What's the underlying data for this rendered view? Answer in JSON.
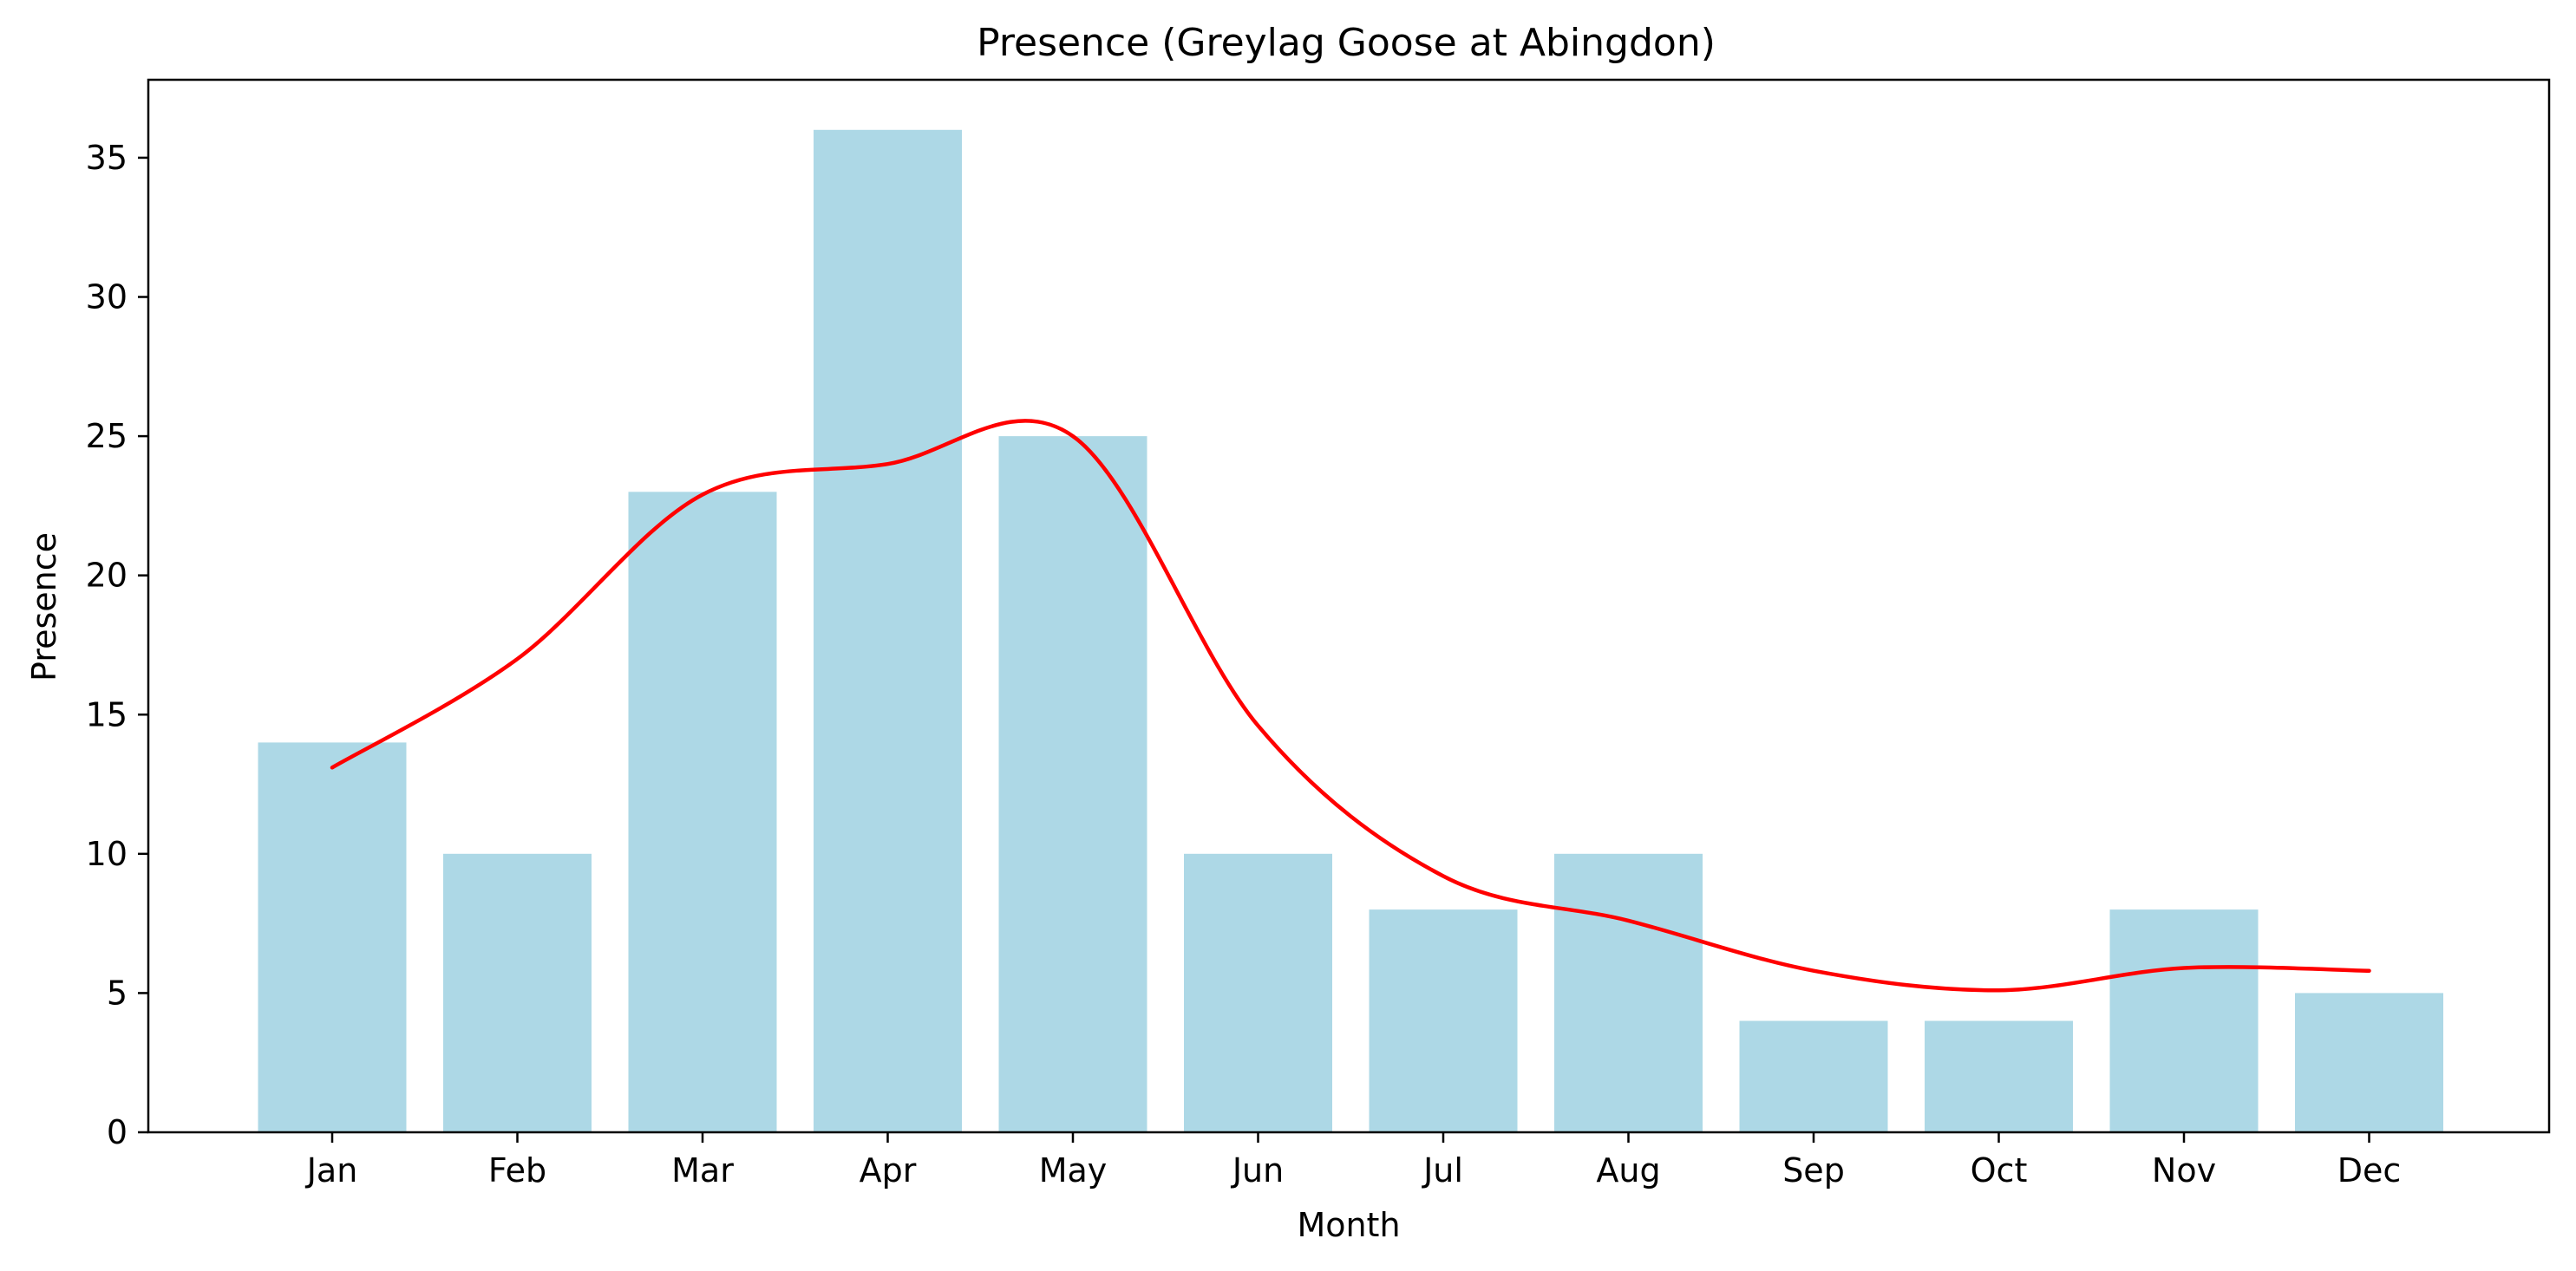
{
  "chart_data": {
    "type": "bar",
    "title": "Presence (Greylag Goose at Abingdon)",
    "xlabel": "Month",
    "ylabel": "Presence",
    "categories": [
      "Jan",
      "Feb",
      "Mar",
      "Apr",
      "May",
      "Jun",
      "Jul",
      "Aug",
      "Sep",
      "Oct",
      "Nov",
      "Dec"
    ],
    "series": [
      {
        "type": "bar",
        "values": [
          14,
          10,
          23,
          36,
          25,
          10,
          8,
          10,
          4,
          4,
          8,
          5
        ],
        "color": "#add8e6"
      },
      {
        "type": "line",
        "values": [
          13.1,
          17.0,
          22.9,
          24.0,
          25.0,
          14.6,
          9.2,
          7.6,
          5.8,
          5.1,
          5.9,
          5.8
        ],
        "color": "#ff0000"
      }
    ],
    "ylim": [
      0,
      37.8
    ],
    "yticks": [
      0,
      5,
      10,
      15,
      20,
      25,
      30,
      35
    ],
    "grid": false,
    "legend": "none"
  }
}
